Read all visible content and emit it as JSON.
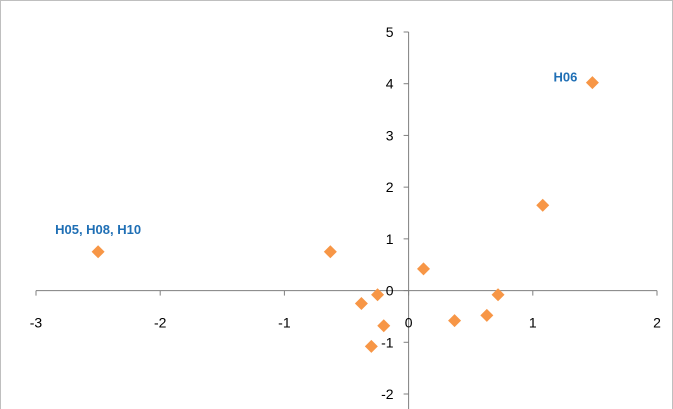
{
  "chart_data": {
    "type": "scatter",
    "xlim": [
      -3,
      2
    ],
    "ylim": [
      -2,
      5
    ],
    "x_ticks": [
      -3,
      -2,
      -1,
      0,
      1,
      2
    ],
    "y_ticks": [
      -2,
      -1,
      0,
      1,
      2,
      3,
      4,
      5
    ],
    "grid": false,
    "legend": "none",
    "marker": "diamond",
    "colors": {
      "marker": "#F79646",
      "annotation": "#1F6FB5",
      "axis": "#7f7f7f",
      "frame": "#bfbfbf"
    },
    "points": [
      {
        "x": -2.5,
        "y": 0.75
      },
      {
        "x": -0.63,
        "y": 0.75
      },
      {
        "x": -0.38,
        "y": -0.25
      },
      {
        "x": -0.25,
        "y": -0.08
      },
      {
        "x": -0.2,
        "y": -0.68
      },
      {
        "x": -0.3,
        "y": -1.08
      },
      {
        "x": 0.12,
        "y": 0.42
      },
      {
        "x": 0.37,
        "y": -0.58
      },
      {
        "x": 0.63,
        "y": -0.48
      },
      {
        "x": 0.72,
        "y": -0.08
      },
      {
        "x": 1.08,
        "y": 1.65
      },
      {
        "x": 1.48,
        "y": 4.02
      }
    ],
    "annotations": [
      {
        "text": "H05, H08, H10",
        "x": -2.5,
        "y": 0.75,
        "anchor": "above"
      },
      {
        "text": "H06",
        "x": 1.48,
        "y": 4.02,
        "anchor": "left"
      }
    ]
  }
}
